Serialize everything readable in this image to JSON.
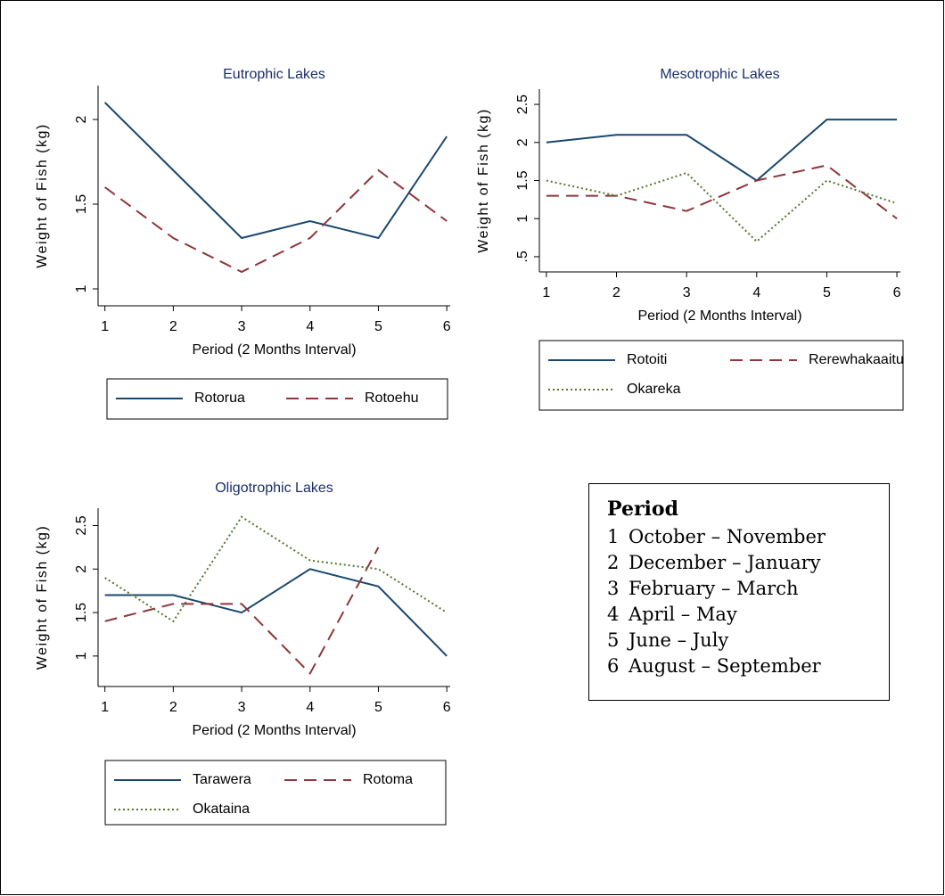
{
  "chart_data": [
    {
      "type": "line",
      "title": "Eutrophic Lakes",
      "x_label": "Period (2 Months Interval)",
      "y_label": "Weight of Fish (kg)",
      "x": [
        1,
        2,
        3,
        4,
        5,
        6
      ],
      "xlim": [
        0.9,
        6.05
      ],
      "xticks": [
        1,
        2,
        3,
        4,
        5,
        6
      ],
      "ylim": [
        0.9,
        2.2
      ],
      "yticks": [
        1,
        1.5,
        2
      ],
      "series": [
        {
          "name": "Rotorua",
          "color": "#1a476f",
          "style": "solid",
          "values": [
            2.1,
            1.7,
            1.3,
            1.4,
            1.3,
            1.9
          ]
        },
        {
          "name": "Rotoehu",
          "color": "#90353b",
          "style": "dashed",
          "values": [
            1.6,
            1.3,
            1.1,
            1.3,
            1.7,
            1.4
          ]
        }
      ]
    },
    {
      "type": "line",
      "title": "Mesotrophic Lakes",
      "x_label": "Period (2 Months Interval)",
      "y_label": "Weight of Fish (kg)",
      "x": [
        1,
        2,
        3,
        4,
        5,
        6
      ],
      "xlim": [
        0.9,
        6.05
      ],
      "xticks": [
        1,
        2,
        3,
        4,
        5,
        6
      ],
      "ylim": [
        0.3,
        2.7
      ],
      "yticks": [
        {
          "value": 0.5,
          "label": ".5"
        },
        1,
        1.5,
        2,
        2.5
      ],
      "series": [
        {
          "name": "Rotoiti",
          "color": "#1a476f",
          "style": "solid",
          "values": [
            2.0,
            2.1,
            2.1,
            1.5,
            2.3,
            2.3
          ]
        },
        {
          "name": "Rerewhakaaitu",
          "color": "#90353b",
          "style": "dashed",
          "values": [
            1.3,
            1.3,
            1.1,
            1.5,
            1.7,
            1.0
          ]
        },
        {
          "name": "Okareka",
          "color": "#55752f",
          "style": "dotted",
          "values": [
            1.5,
            1.3,
            1.6,
            0.7,
            1.5,
            1.2
          ]
        }
      ]
    },
    {
      "type": "line",
      "title": "Oligotrophic Lakes",
      "x_label": "Period  (2 Months Interval)",
      "y_label": "Weight of Fish (kg)",
      "x": [
        1,
        2,
        3,
        4,
        5,
        6
      ],
      "xlim": [
        0.9,
        6.05
      ],
      "xticks": [
        1,
        2,
        3,
        4,
        5,
        6
      ],
      "ylim": [
        0.65,
        2.7
      ],
      "yticks": [
        1,
        1.5,
        2,
        2.5
      ],
      "series": [
        {
          "name": "Tarawera",
          "color": "#1a476f",
          "style": "solid",
          "values": [
            1.7,
            1.7,
            1.5,
            2.0,
            1.8,
            1.0
          ]
        },
        {
          "name": "Rotoma",
          "color": "#90353b",
          "style": "dashed",
          "values": [
            1.4,
            1.6,
            1.6,
            0.8,
            2.25,
            null
          ]
        },
        {
          "name": "Okataina",
          "color": "#55752f",
          "style": "dotted",
          "values": [
            1.9,
            1.4,
            2.6,
            2.1,
            2.0,
            1.5
          ]
        }
      ]
    }
  ],
  "period_legend": {
    "title": "Period",
    "items": [
      {
        "number": 1,
        "label": "October – November"
      },
      {
        "number": 2,
        "label": "December – January"
      },
      {
        "number": 3,
        "label": "February – March"
      },
      {
        "number": 4,
        "label": "April – May"
      },
      {
        "number": 5,
        "label": "June – July"
      },
      {
        "number": 6,
        "label": "August – September"
      }
    ]
  }
}
